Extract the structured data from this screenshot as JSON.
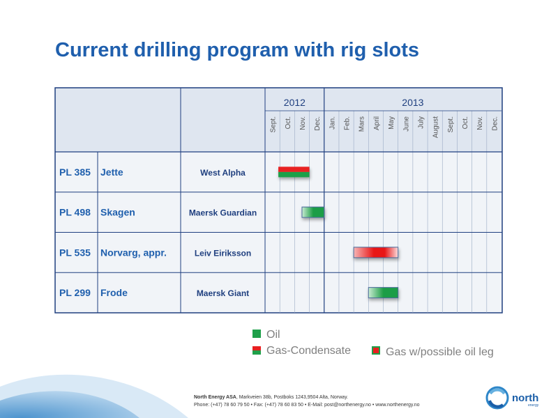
{
  "title": "Current drilling program with rig slots",
  "chart_data": {
    "type": "gantt",
    "years": [
      {
        "label": "2012",
        "start": 0,
        "span": 4
      },
      {
        "label": "2013",
        "start": 4,
        "span": 12
      }
    ],
    "months": [
      "Sept.",
      "Oct.",
      "Nov.",
      "Dec.",
      "Jan.",
      "Feb.",
      "Mars",
      "April",
      "May",
      "June",
      "July",
      "August",
      "Sept.",
      "Oct.",
      "Nov.",
      "Dec."
    ],
    "rows": [
      {
        "license": "PL 385",
        "name": "Jette",
        "rig": "West Alpha",
        "start": 0.9,
        "end": 3.0,
        "type": "Gas-Condensate"
      },
      {
        "license": "PL 498",
        "name": "Skagen",
        "rig": "Maersk Guardian",
        "start": 2.5,
        "end": 4.0,
        "type": "Oil"
      },
      {
        "license": "PL 535",
        "name": "Norvarg, appr.",
        "rig": "Leiv Eiriksson",
        "start": 6.0,
        "end": 9.0,
        "type": "Gas w/possible oil leg"
      },
      {
        "license": "PL 299",
        "name": "Frode",
        "rig": "Maersk Giant",
        "start": 7.0,
        "end": 9.0,
        "type": "Oil"
      }
    ]
  },
  "legend": {
    "oil": "Oil",
    "gas_condensate": "Gas-Condensate",
    "gas_oil_leg": "Gas w/possible oil leg"
  },
  "footer": {
    "line1_company": "North Energy ASA",
    "line1_rest": ", Markveien 38b, Postboks 1243,9504 Alta, Norway.",
    "line2": "Phone: (+47) 78 60 79 50  • Fax: (+47) 78 60 83 50  • E-Mail: post@northenergy.no  •  www.northenergy.no"
  },
  "brand": {
    "name": "north",
    "sub": "energy"
  },
  "colors": {
    "title": "#1f5fad",
    "table_border": "#1f3f7f",
    "header_bg": "#dfe6f0",
    "row_bg": "#f1f4f8",
    "oil": "#1fa04a",
    "gas": "#e82020"
  }
}
